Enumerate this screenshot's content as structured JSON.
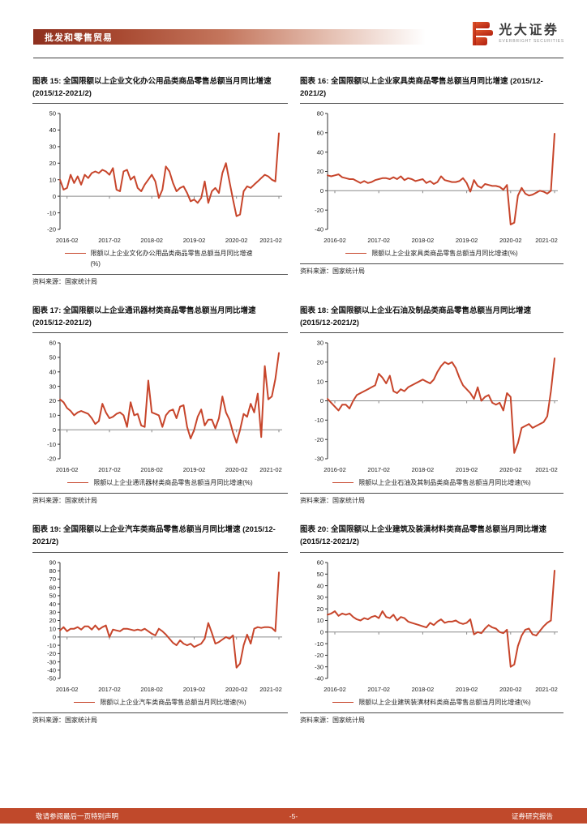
{
  "header": {
    "section_title": "批发和零售贸易",
    "brand_name": "光大证券",
    "brand_subtitle": "EVERBRIGHT SECURITIES"
  },
  "style": {
    "line_color": "#c7452b",
    "footer_bar_color": "#c0492b"
  },
  "footer": {
    "left_note": "敬请参阅最后一页特别声明",
    "page_number": "-5-",
    "right_note": "证券研究报告"
  },
  "chart_data": [
    {
      "type": "line",
      "title": "图表 15: 全国限额以上企业文化办公用品类商品零售总额当月同比增速 (2015/12-2021/2)",
      "legend": "限额以上企业文化办公用品类商品零售总额当月同比增速(%)",
      "source": "资料来源：国家统计局",
      "x_start": "2015-12",
      "x_tick_labels": [
        "2016-02",
        "2017-02",
        "2018-02",
        "2019-02",
        "2020-02",
        "2021-02"
      ],
      "x_tick_indices": [
        2,
        14,
        26,
        38,
        50,
        62
      ],
      "ylim": [
        -20,
        50
      ],
      "ystep": 10,
      "unit": "%",
      "values": [
        10,
        4,
        5,
        13,
        8,
        12,
        7,
        13,
        11,
        14,
        15,
        14,
        16,
        15,
        13,
        17,
        4,
        3,
        15,
        16,
        10,
        12,
        5,
        3,
        7,
        10,
        13,
        9,
        -1,
        4,
        18,
        15,
        8,
        3,
        5,
        6,
        2,
        -3,
        -2,
        -4,
        -1,
        9,
        -4,
        3,
        5,
        2,
        14,
        20,
        9,
        -2,
        -12,
        -11,
        3,
        6,
        5,
        7,
        9,
        11,
        13,
        12,
        10,
        9,
        38
      ]
    },
    {
      "type": "line",
      "title": "图表 16: 全国限额以上企业家具类商品零售总额当月同比增速 (2015/12-2021/2)",
      "legend": "限额以上企业家具类商品零售总额当月同比增速(%)",
      "source": "资料来源：国家统计局",
      "x_start": "2015-12",
      "x_tick_labels": [
        "2016-02",
        "2017-02",
        "2018-02",
        "2019-02",
        "2020-02",
        "2021-02"
      ],
      "x_tick_indices": [
        2,
        14,
        26,
        38,
        50,
        62
      ],
      "ylim": [
        -40,
        80
      ],
      "ystep": 20,
      "unit": "%",
      "values": [
        16,
        15,
        16,
        17,
        14,
        13,
        12,
        12,
        10,
        8,
        10,
        8,
        9,
        11,
        12,
        13,
        13,
        12,
        14,
        12,
        15,
        11,
        13,
        12,
        10,
        11,
        12,
        8,
        10,
        7,
        9,
        15,
        11,
        10,
        9,
        9,
        10,
        13,
        8,
        -1,
        11,
        5,
        3,
        7,
        6,
        5,
        5,
        4,
        1,
        6,
        -35,
        -33,
        -5,
        3,
        -3,
        -5,
        -4,
        -2,
        0,
        -1,
        -3,
        0,
        59
      ]
    },
    {
      "type": "line",
      "title": "图表 17: 全国限额以上企业通讯器材类商品零售总额当月同比增速 (2015/12-2021/2)",
      "legend": "限额以上企业通讯器材类商品零售总额当月同比增速(%)",
      "source": "资料来源：国家统计局",
      "x_start": "2015-12",
      "x_tick_labels": [
        "2016-02",
        "2017-02",
        "2018-02",
        "2019-02",
        "2020-02",
        "2021-02"
      ],
      "x_tick_indices": [
        2,
        14,
        26,
        38,
        50,
        62
      ],
      "ylim": [
        -20,
        60
      ],
      "ystep": 10,
      "unit": "%",
      "values": [
        21,
        19,
        15,
        13,
        10,
        12,
        13,
        12,
        11,
        8,
        4,
        6,
        18,
        12,
        8,
        9,
        11,
        12,
        10,
        2,
        19,
        10,
        11,
        3,
        2,
        34,
        12,
        11,
        10,
        2,
        10,
        13,
        14,
        8,
        16,
        17,
        2,
        -6,
        0,
        9,
        14,
        3,
        7,
        7,
        1,
        8,
        23,
        12,
        7,
        -2,
        -9,
        0,
        11,
        9,
        18,
        12,
        25,
        -5,
        44,
        21,
        23,
        35,
        53
      ]
    },
    {
      "type": "line",
      "title": "图表 18: 全国限额以上企业石油及制品类商品零售总额当月同比增速 (2015/12-2021/2)",
      "legend": "限额以上企业石油及其制品类商品零售总额当月同比增速(%)",
      "source": "资料来源：国家统计局",
      "x_start": "2015-12",
      "x_tick_labels": [
        "2016-02",
        "2017-02",
        "2018-02",
        "2019-02",
        "2020-02",
        "2021-02"
      ],
      "x_tick_indices": [
        2,
        14,
        26,
        38,
        50,
        62
      ],
      "ylim": [
        -30,
        30
      ],
      "ystep": 10,
      "unit": "%",
      "values": [
        1,
        -1,
        -3,
        -5,
        -2,
        -2,
        -4,
        0,
        3,
        4,
        5,
        6,
        7,
        8,
        14,
        12,
        9,
        13,
        5,
        4,
        6,
        5,
        7,
        8,
        9,
        10,
        11,
        10,
        9,
        11,
        15,
        18,
        20,
        19,
        20,
        17,
        12,
        8,
        6,
        4,
        1,
        7,
        0,
        2,
        3,
        -1,
        -2,
        -1,
        -5,
        4,
        2,
        -27,
        -22,
        -14,
        -13,
        -12,
        -14,
        -13,
        -12,
        -11,
        -8,
        5,
        22
      ]
    },
    {
      "type": "line",
      "title": "图表 19: 全国限额以上企业汽车类商品零售总额当月同比增速 (2015/12-2021/2)",
      "legend": "限额以上企业汽车类商品零售总额当月同比增速(%)",
      "source": "资料来源：国家统计局",
      "x_start": "2015-12",
      "x_tick_labels": [
        "2016-02",
        "2017-02",
        "2018-02",
        "2019-02",
        "2020-02",
        "2021-02"
      ],
      "x_tick_indices": [
        2,
        14,
        26,
        38,
        50,
        62
      ],
      "ylim": [
        -50,
        90
      ],
      "ystep": 10,
      "unit": "%",
      "values": [
        8,
        12,
        7,
        10,
        10,
        12,
        9,
        13,
        13,
        9,
        14,
        9,
        12,
        14,
        0,
        9,
        8,
        7,
        10,
        10,
        9,
        8,
        9,
        8,
        10,
        7,
        4,
        2,
        10,
        7,
        3,
        -2,
        -7,
        -10,
        -4,
        -8,
        -10,
        -8,
        -12,
        -10,
        -8,
        -2,
        17,
        5,
        -8,
        -6,
        -3,
        0,
        -2,
        2,
        -37,
        -32,
        -10,
        3,
        -8,
        10,
        12,
        11,
        12,
        12,
        11,
        7,
        78
      ]
    },
    {
      "type": "line",
      "title": "图表 20: 全国限额以上企业建筑及装潢材料类商品零售总额当月同比增速 (2015/12-2021/2)",
      "legend": "限额以上企业建筑装潢材料类商品零售总额当月同比增速(%)",
      "source": "资料来源：国家统计局",
      "x_start": "2015-12",
      "x_tick_labels": [
        "2016-02",
        "2017-02",
        "2018-02",
        "2019-02",
        "2020-02",
        "2021-02"
      ],
      "x_tick_indices": [
        2,
        14,
        26,
        38,
        50,
        62
      ],
      "ylim": [
        -40,
        60
      ],
      "ystep": 10,
      "unit": "%",
      "values": [
        15,
        16,
        18,
        14,
        16,
        15,
        16,
        13,
        11,
        10,
        12,
        11,
        13,
        14,
        12,
        18,
        13,
        12,
        15,
        10,
        13,
        12,
        9,
        8,
        7,
        6,
        5,
        4,
        8,
        6,
        9,
        11,
        8,
        9,
        9,
        10,
        8,
        7,
        8,
        11,
        -2,
        0,
        -1,
        3,
        6,
        4,
        3,
        0,
        -1,
        2,
        -30,
        -28,
        -12,
        -3,
        2,
        3,
        -2,
        -3,
        1,
        5,
        8,
        10,
        53
      ]
    }
  ]
}
